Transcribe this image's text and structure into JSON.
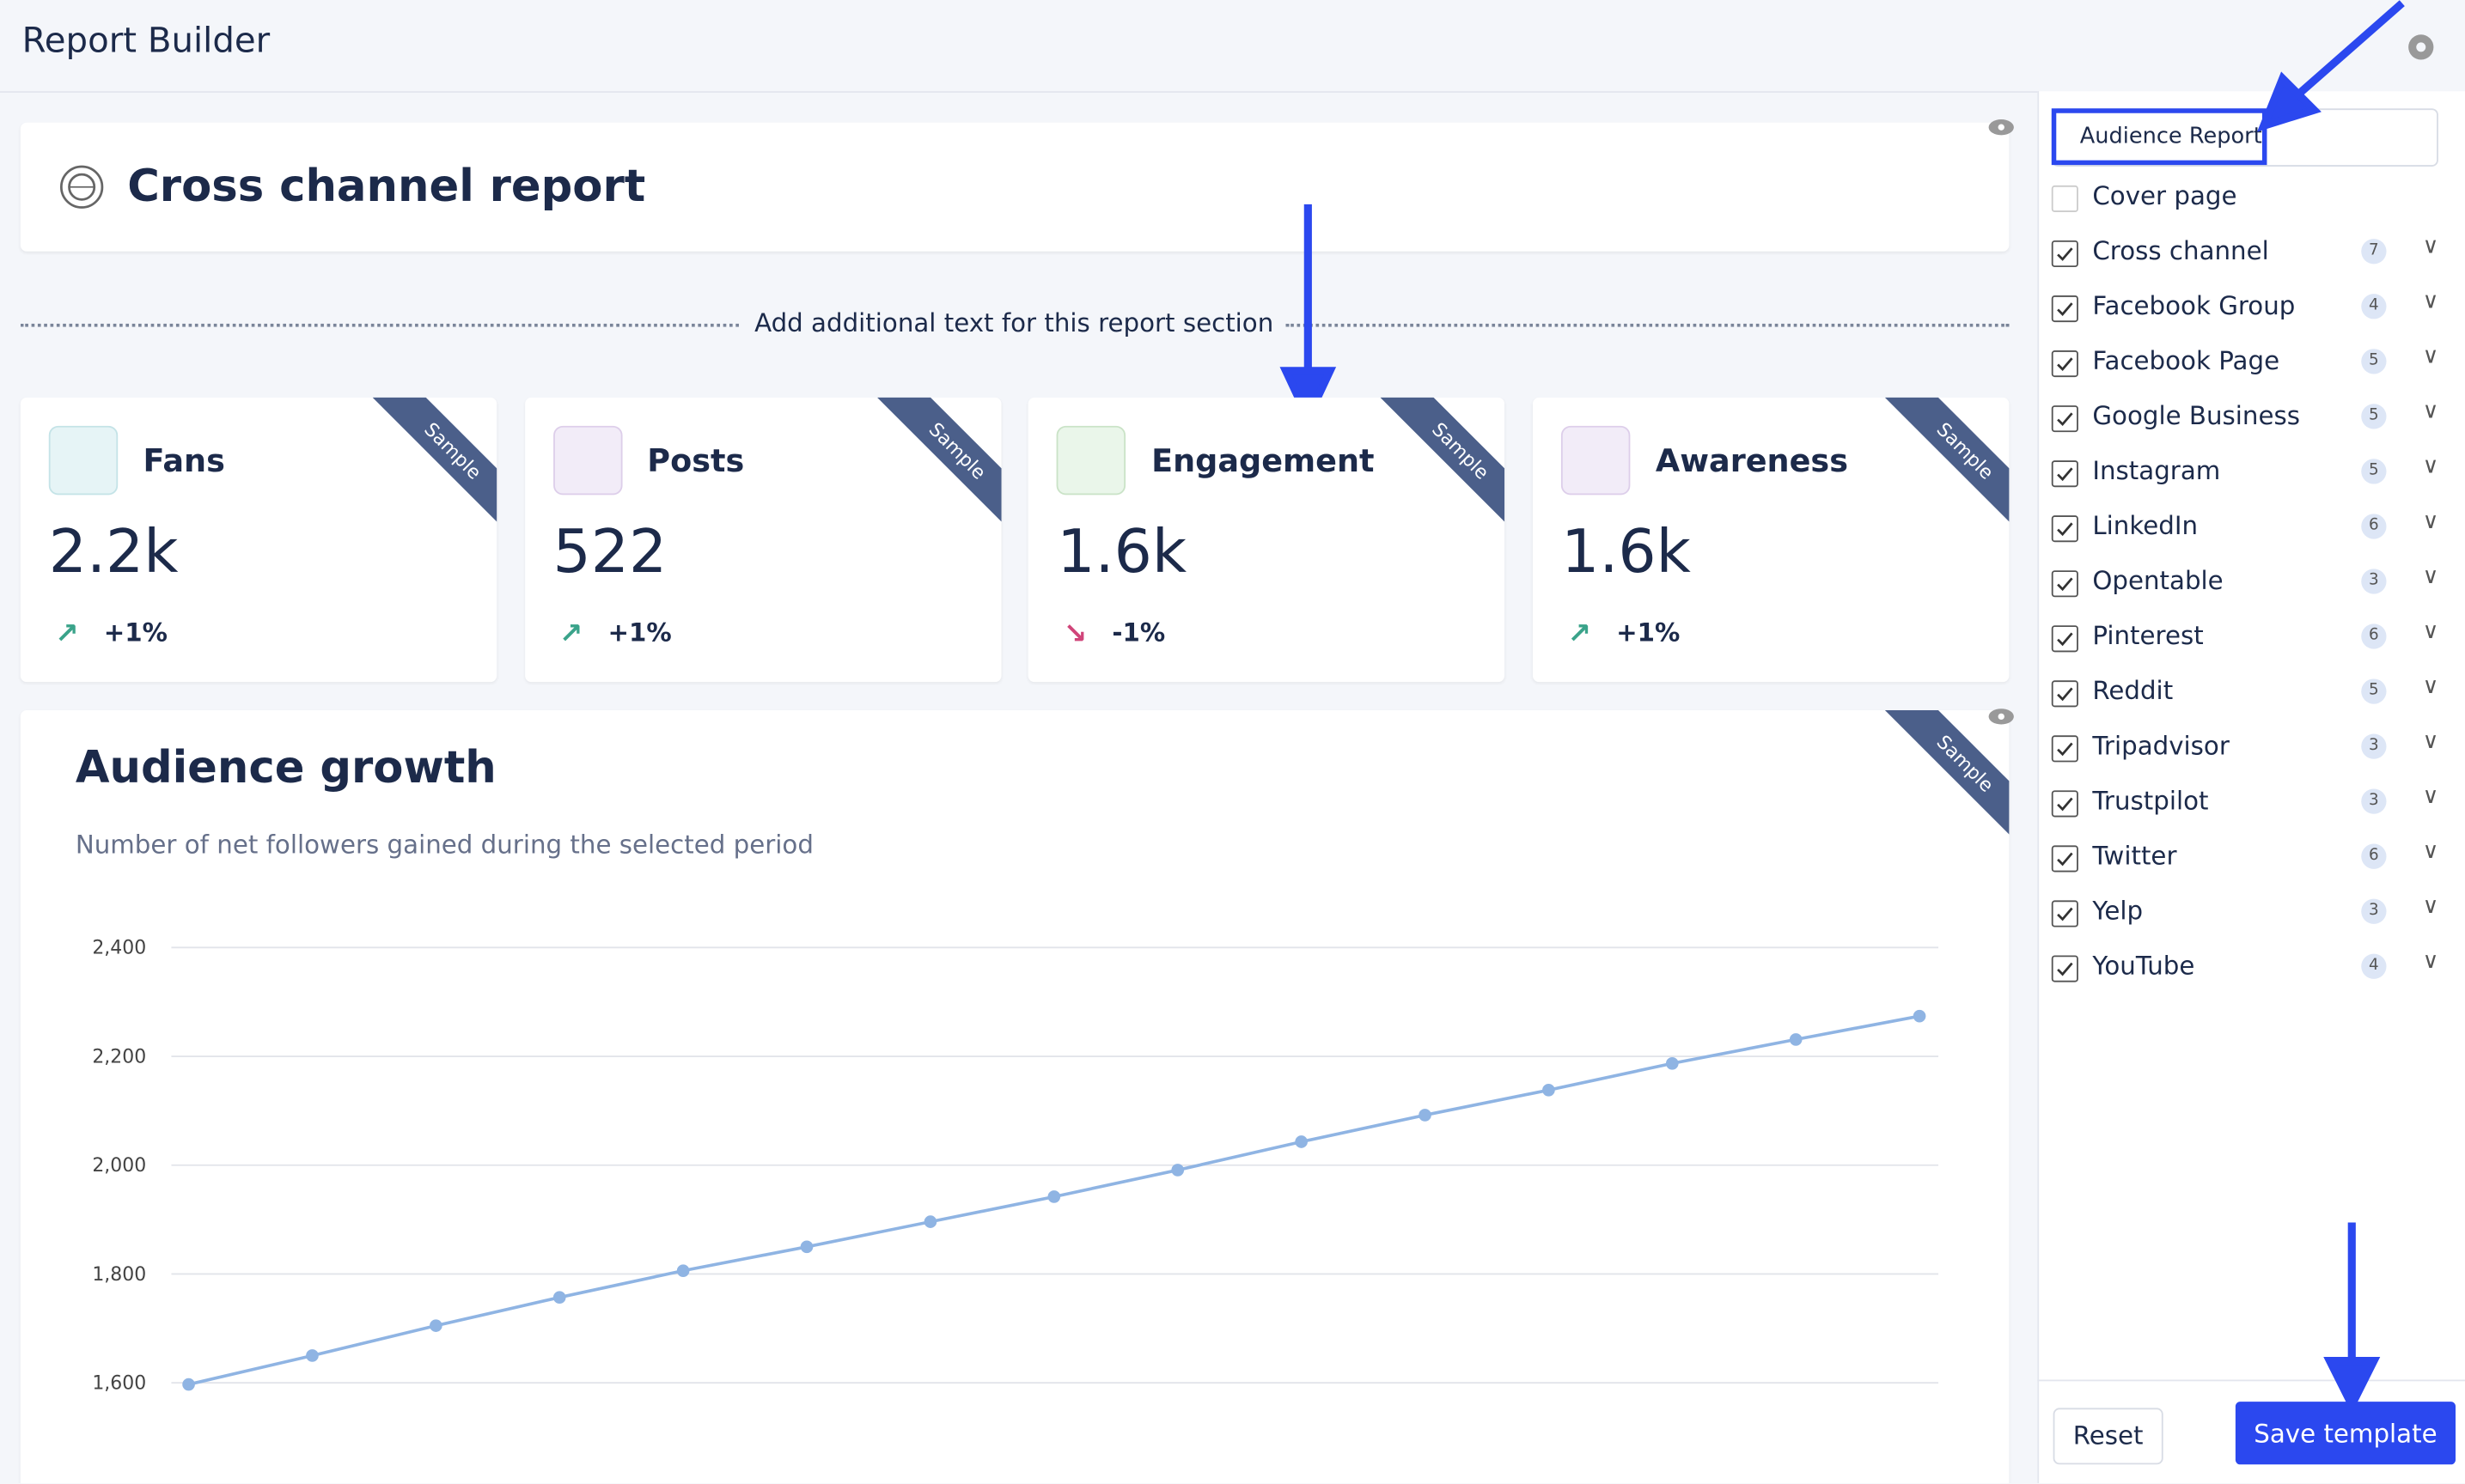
{
  "header": {
    "title": "Report Builder"
  },
  "report": {
    "title": "Cross channel report",
    "section_text": "Add additional text for this report section",
    "sample_label": "Sample"
  },
  "kpis": [
    {
      "label": "Fans",
      "value": "2.2k",
      "change": "+1%",
      "trend": "up"
    },
    {
      "label": "Posts",
      "value": "522",
      "change": "+1%",
      "trend": "up"
    },
    {
      "label": "Engagement",
      "value": "1.6k",
      "change": "-1%",
      "trend": "down"
    },
    {
      "label": "Awareness",
      "value": "1.6k",
      "change": "+1%",
      "trend": "up"
    }
  ],
  "chart_data": {
    "type": "line",
    "title": "Audience growth",
    "subtitle": "Number of net followers gained during the selected period",
    "series": [
      {
        "color": "#8fb4e3",
        "values": [
          1597,
          1650,
          1705,
          1757,
          1806,
          1850,
          1896,
          1942,
          1991,
          2043,
          2092,
          2138,
          2187,
          2231,
          2274
        ]
      }
    ],
    "ylim": [
      1600,
      2400
    ],
    "yticks": [
      {
        "value": 1600,
        "label": "1,600"
      },
      {
        "value": 1800,
        "label": "1,800"
      },
      {
        "value": 2000,
        "label": "2,000"
      },
      {
        "value": 2200,
        "label": "2,200"
      },
      {
        "value": 2400,
        "label": "2,400"
      }
    ],
    "grid": true
  },
  "sidebar": {
    "template_name": "Audience Report",
    "items": [
      {
        "label": "Cover page",
        "checked": false,
        "count": null
      },
      {
        "label": "Cross channel",
        "checked": true,
        "count": 7
      },
      {
        "label": "Facebook Group",
        "checked": true,
        "count": 4
      },
      {
        "label": "Facebook Page",
        "checked": true,
        "count": 5
      },
      {
        "label": "Google Business",
        "checked": true,
        "count": 5
      },
      {
        "label": "Instagram",
        "checked": true,
        "count": 5
      },
      {
        "label": "LinkedIn",
        "checked": true,
        "count": 6
      },
      {
        "label": "Opentable",
        "checked": true,
        "count": 3
      },
      {
        "label": "Pinterest",
        "checked": true,
        "count": 6
      },
      {
        "label": "Reddit",
        "checked": true,
        "count": 5
      },
      {
        "label": "Tripadvisor",
        "checked": true,
        "count": 3
      },
      {
        "label": "Trustpilot",
        "checked": true,
        "count": 3
      },
      {
        "label": "Twitter",
        "checked": true,
        "count": 6
      },
      {
        "label": "Yelp",
        "checked": true,
        "count": 3
      },
      {
        "label": "YouTube",
        "checked": true,
        "count": 4
      }
    ],
    "reset_button": "Reset",
    "save_button": "Save template"
  }
}
